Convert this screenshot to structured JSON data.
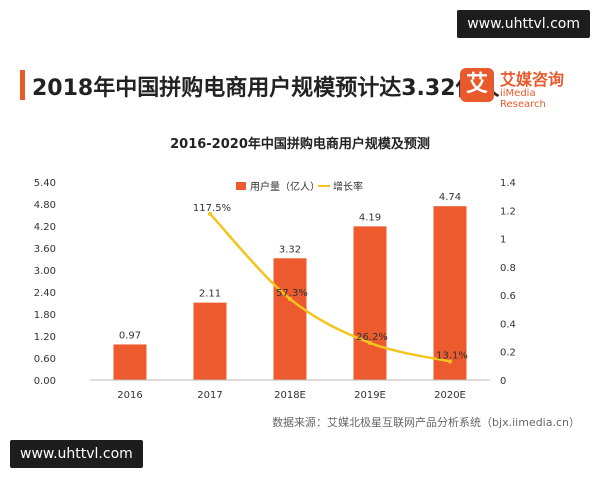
{
  "watermark_top": "www.uhttvl.com",
  "watermark_bottom": "www.uhttvl.com",
  "headline": "2018年中国拼购电商用户规模预计达3.32亿人",
  "logo": {
    "mark": "艾",
    "cn": "艾媒咨询",
    "en": "iiMedia Research"
  },
  "source": "数据来源：艾媒北极星互联网产品分析系统（bjx.iimedia.cn）",
  "colors": {
    "bar": "#ed5a2e",
    "line": "#f2c41c",
    "accent": "#e85a2c"
  },
  "chart_data": {
    "type": "bar",
    "title": "2016-2020年中国拼购电商用户规模及预测",
    "categories": [
      "2016",
      "2017",
      "2018E",
      "2019E",
      "2020E"
    ],
    "series": [
      {
        "name": "用户量（亿人）",
        "type": "bar",
        "axis": "left",
        "values": [
          0.97,
          2.11,
          3.32,
          4.19,
          4.74
        ],
        "labels": [
          "0.97",
          "2.11",
          "3.32",
          "4.19",
          "4.74"
        ]
      },
      {
        "name": "增长率",
        "type": "line",
        "axis": "right",
        "values": [
          null,
          1.175,
          0.573,
          0.262,
          0.131
        ],
        "labels": [
          "",
          "117.5%",
          "57.3%",
          "26.2%",
          "13.1%"
        ]
      }
    ],
    "y_left": {
      "min": 0,
      "max": 5.4,
      "ticks": [
        "0.00",
        "0.60",
        "1.20",
        "1.80",
        "2.40",
        "3.00",
        "3.60",
        "4.20",
        "4.80",
        "5.40"
      ]
    },
    "y_right": {
      "min": 0,
      "max": 1.4,
      "ticks": [
        "0",
        "0.2",
        "0.4",
        "0.6",
        "0.8",
        "1",
        "1.2",
        "1.4"
      ]
    },
    "legend_position": "top-center",
    "grid": false
  }
}
